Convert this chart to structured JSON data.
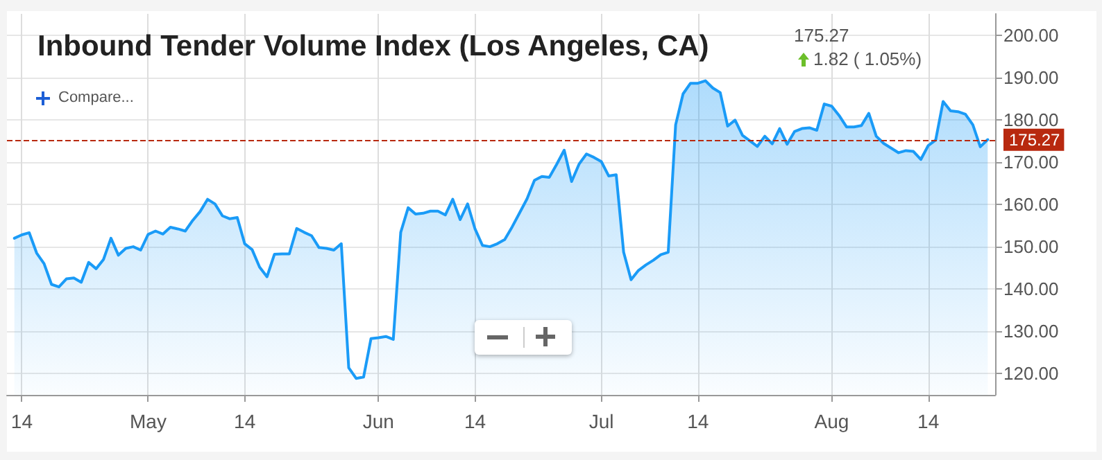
{
  "chart_data": {
    "type": "area",
    "title": "Inbound Tender Volume Index (Los Angeles, CA)",
    "annotations": [
      "175.27",
      "1.82 ( 1.05%)",
      "Compare..."
    ],
    "x": [
      "--04-13",
      "--04-14",
      "--04-15",
      "--04-16",
      "--04-17",
      "--04-18",
      "--04-19",
      "--04-20",
      "--04-21",
      "--04-22",
      "--04-23",
      "--04-24",
      "--04-25",
      "--04-26",
      "--04-27",
      "--04-28",
      "--04-29",
      "--04-30",
      "--05-01",
      "--05-02",
      "--05-03",
      "--05-04",
      "--05-05",
      "--05-06",
      "--05-07",
      "--05-08",
      "--05-09",
      "--05-10",
      "--05-11",
      "--05-12",
      "--05-13",
      "--05-14",
      "--05-15",
      "--05-16",
      "--05-17",
      "--05-18",
      "--05-19",
      "--05-20",
      "--05-21",
      "--05-22",
      "--05-23",
      "--05-24",
      "--05-25",
      "--05-26",
      "--05-27",
      "--05-28",
      "--05-29",
      "--05-30",
      "--05-31",
      "--06-01",
      "--06-02",
      "--06-03",
      "--06-04",
      "--06-05",
      "--06-06",
      "--06-07",
      "--06-08",
      "--06-09",
      "--06-10",
      "--06-11",
      "--06-12",
      "--06-13",
      "--06-14",
      "--06-15",
      "--06-16",
      "--06-17",
      "--06-18",
      "--06-19",
      "--06-20",
      "--06-21",
      "--06-22",
      "--06-23",
      "--06-24",
      "--06-25",
      "--06-26",
      "--06-27",
      "--06-28",
      "--06-29",
      "--06-30",
      "--07-01",
      "--07-02",
      "--07-03",
      "--07-04",
      "--07-05",
      "--07-06",
      "--07-07",
      "--07-08",
      "--07-09",
      "--07-10",
      "--07-11",
      "--07-12",
      "--07-13",
      "--07-14",
      "--07-15",
      "--07-16",
      "--07-17",
      "--07-18",
      "--07-19",
      "--07-20",
      "--07-21",
      "--07-22",
      "--07-23",
      "--07-24",
      "--07-25",
      "--07-26",
      "--07-27",
      "--07-28",
      "--07-29",
      "--07-30",
      "--07-31",
      "--08-01",
      "--08-02",
      "--08-03",
      "--08-04",
      "--08-05",
      "--08-06",
      "--08-07",
      "--08-08",
      "--08-09",
      "--08-10",
      "--08-11",
      "--08-12",
      "--08-13",
      "--08-14",
      "--08-15",
      "--08-16",
      "--08-17",
      "--08-18",
      "--08-19",
      "--08-20",
      "--08-21",
      "--08-22"
    ],
    "series": [
      {
        "color": "#1a9bf7",
        "values": [
          152.0,
          152.8,
          153.3,
          148.5,
          146.0,
          141.1,
          140.5,
          142.4,
          142.6,
          141.6,
          146.3,
          144.8,
          147.0,
          152.0,
          148.0,
          149.6,
          150.0,
          149.2,
          152.9,
          153.7,
          153.0,
          154.6,
          154.2,
          153.7,
          156.2,
          158.3,
          161.2,
          160.1,
          157.3,
          156.6,
          156.9,
          150.7,
          149.3,
          145.2,
          142.9,
          148.2,
          148.3,
          148.3,
          154.3,
          153.4,
          152.6,
          149.8,
          149.6,
          149.2,
          150.7,
          121.4,
          118.9,
          119.2,
          128.3,
          128.5,
          128.8,
          128.1,
          153.4,
          159.2,
          157.7,
          157.9,
          158.4,
          158.4,
          157.5,
          161.2,
          156.4,
          160.1,
          154.2,
          150.3,
          150.0,
          150.7,
          151.7,
          154.7,
          158.0,
          161.3,
          165.7,
          166.6,
          166.4,
          169.5,
          172.8,
          165.4,
          169.5,
          171.9,
          171.1,
          170.1,
          166.7,
          167.0,
          148.7,
          142.2,
          144.4,
          145.7,
          146.8,
          148.1,
          148.7,
          178.8,
          186.1,
          188.6,
          188.6,
          189.2,
          187.5,
          186.4,
          178.5,
          179.9,
          176.3,
          175.0,
          173.7,
          176.1,
          174.3,
          177.9,
          174.2,
          177.2,
          177.9,
          178.1,
          177.5,
          183.7,
          183.2,
          181.0,
          178.3,
          178.3,
          178.6,
          181.5,
          176.1,
          174.4,
          173.3,
          172.2,
          172.7,
          172.5,
          170.6,
          173.9,
          175.2,
          184.3,
          182.1,
          181.9,
          181.3,
          178.8,
          173.6,
          175.3
        ]
      }
    ],
    "xlim": [
      "--04-12",
      "--08-23"
    ],
    "xticks": [
      {
        "value": "--04-14",
        "label": "14"
      },
      {
        "value": "--05-01",
        "label": "May"
      },
      {
        "value": "--05-14",
        "label": "14"
      },
      {
        "value": "--06-01",
        "label": "Jun"
      },
      {
        "value": "--06-14",
        "label": "14"
      },
      {
        "value": "--07-01",
        "label": "Jul"
      },
      {
        "value": "--07-14",
        "label": "14"
      },
      {
        "value": "--08-01",
        "label": "Aug"
      },
      {
        "value": "--08-14",
        "label": "14"
      }
    ],
    "ylim": [
      115,
      205
    ],
    "yticks": [
      {
        "value": 120,
        "label": "120.00"
      },
      {
        "value": 130,
        "label": "130.00"
      },
      {
        "value": 140,
        "label": "140.00"
      },
      {
        "value": 150,
        "label": "150.00"
      },
      {
        "value": 160,
        "label": "160.00"
      },
      {
        "value": 170,
        "label": "170.00"
      },
      {
        "value": 180,
        "label": "180.00"
      },
      {
        "value": 190,
        "label": "190.00"
      },
      {
        "value": 200,
        "label": "200.00"
      }
    ],
    "ref_lines": [
      {
        "axis": "y",
        "value": 175.27,
        "label": "175.27",
        "color": "#b8290f",
        "line_style": "dashed"
      }
    ],
    "grid": true,
    "marker": "none",
    "line_style": "solid"
  }
}
